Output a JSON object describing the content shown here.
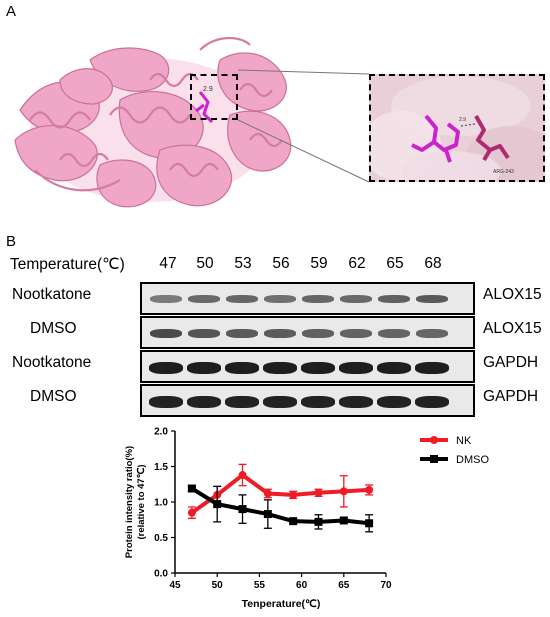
{
  "figure": {
    "panel_a_label": "A",
    "panel_b_label": "B",
    "structure": {
      "distance_label": "2.9",
      "inset_distance_label": "2.9",
      "residue_label": "ARG-243",
      "colors": {
        "protein": "#f0a3c5",
        "ligand": "#cc22cc",
        "surface": "#e9cfd7"
      }
    },
    "western_blot": {
      "temperature_header": "Temperature(℃)",
      "temperatures": [
        "47",
        "50",
        "53",
        "56",
        "59",
        "62",
        "65",
        "68"
      ],
      "rows": [
        {
          "left": "Nootkatone",
          "right": "ALOX15"
        },
        {
          "left": "DMSO",
          "right": "ALOX15"
        },
        {
          "left": "Nootkatone",
          "right": "GAPDH"
        },
        {
          "left": "DMSO",
          "right": "GAPDH"
        }
      ]
    }
  },
  "chart_data": {
    "type": "line",
    "title": "",
    "xlabel": "Tenperature(℃)",
    "ylabel": "Protein intensity ratio(%)",
    "ylabel2": "(relative to 47℃)",
    "xlim": [
      45,
      70
    ],
    "ylim": [
      0.0,
      2.0
    ],
    "xticks": [
      "45",
      "50",
      "55",
      "60",
      "65",
      "70"
    ],
    "yticks": [
      "0.0",
      "0.5",
      "1.0",
      "1.5",
      "2.0"
    ],
    "legend_position": "top-right",
    "grid": false,
    "series": [
      {
        "name": "NK",
        "color": "#ee1c25",
        "x": [
          47,
          50,
          53,
          56,
          59,
          62,
          65,
          68
        ],
        "y": [
          0.85,
          1.1,
          1.38,
          1.12,
          1.1,
          1.13,
          1.15,
          1.17
        ],
        "err": [
          0.08,
          0.12,
          0.15,
          0.06,
          0.05,
          0.05,
          0.22,
          0.07
        ]
      },
      {
        "name": "DMSO",
        "color": "#000000",
        "x": [
          47,
          50,
          53,
          56,
          59,
          62,
          65,
          68
        ],
        "y": [
          1.19,
          0.97,
          0.9,
          0.83,
          0.73,
          0.72,
          0.74,
          0.7
        ],
        "err": [
          0.03,
          0.25,
          0.2,
          0.2,
          0.02,
          0.1,
          0.03,
          0.12
        ]
      }
    ]
  }
}
